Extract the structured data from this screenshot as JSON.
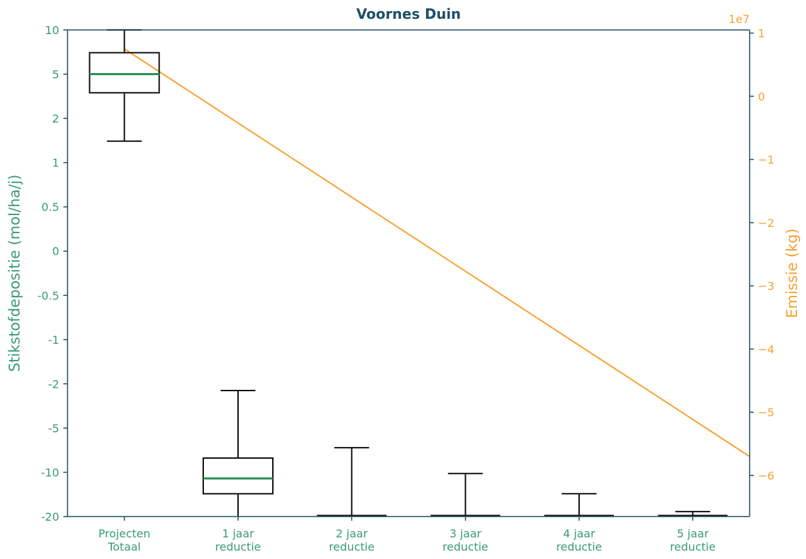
{
  "chart_data": {
    "type": "box",
    "title": "Voornes Duin",
    "categories": [
      [
        "Projecten",
        "Totaal"
      ],
      [
        "1 jaar",
        "reductie"
      ],
      [
        "2 jaar",
        "reductie"
      ],
      [
        "3 jaar",
        "reductie"
      ],
      [
        "4 jaar",
        "reductie"
      ],
      [
        "5 jaar",
        "reductie"
      ]
    ],
    "left_axis": {
      "label": "Stikstofdepositie (mol/ha/j)",
      "scale": "symlog",
      "tick_labels": [
        "10",
        "5",
        "2",
        "1",
        "0.5",
        "0",
        "-0.5",
        "-1",
        "-2",
        "-5",
        "-10",
        "-20"
      ],
      "ylim": [
        -20,
        10
      ],
      "color": "#3a9a78"
    },
    "right_axis": {
      "label": "Emissie (kg)",
      "offset_text": "1e7",
      "scale": "linear",
      "ylim": [
        -6.65,
        1.05
      ],
      "tick_values": [
        1,
        0,
        -1,
        -2,
        -3,
        -4,
        -5,
        -6
      ],
      "tick_labels": [
        "1",
        "0",
        "−1",
        "−2",
        "−3",
        "−4",
        "−5",
        "−6"
      ],
      "color": "#f5a233"
    },
    "boxes": [
      {
        "whisker_low": 1.4,
        "q1": 3.4,
        "median": 5.0,
        "q3": 7.0,
        "whisker_high": 10
      },
      {
        "whisker_low": -20,
        "q1": -14,
        "median": -11,
        "q3": -8,
        "whisker_high": -2.3
      },
      {
        "whisker_low": -20,
        "q1": -20,
        "median": -20,
        "q3": -20,
        "whisker_high": -6.8
      },
      {
        "whisker_low": -20,
        "q1": -20,
        "median": -20,
        "q3": -20,
        "whisker_high": -10.2
      },
      {
        "whisker_low": -20,
        "q1": -20,
        "median": -20,
        "q3": -20,
        "whisker_high": -14
      },
      {
        "whisker_low": -20,
        "q1": -20,
        "median": -20,
        "q3": -20,
        "whisker_high": -18.5
      }
    ],
    "emission_line": {
      "x": [
        0,
        5.5
      ],
      "y": [
        0.75,
        -5.7
      ],
      "color": "#f5a233"
    },
    "median_color": "#2e8b57",
    "grid": false
  }
}
